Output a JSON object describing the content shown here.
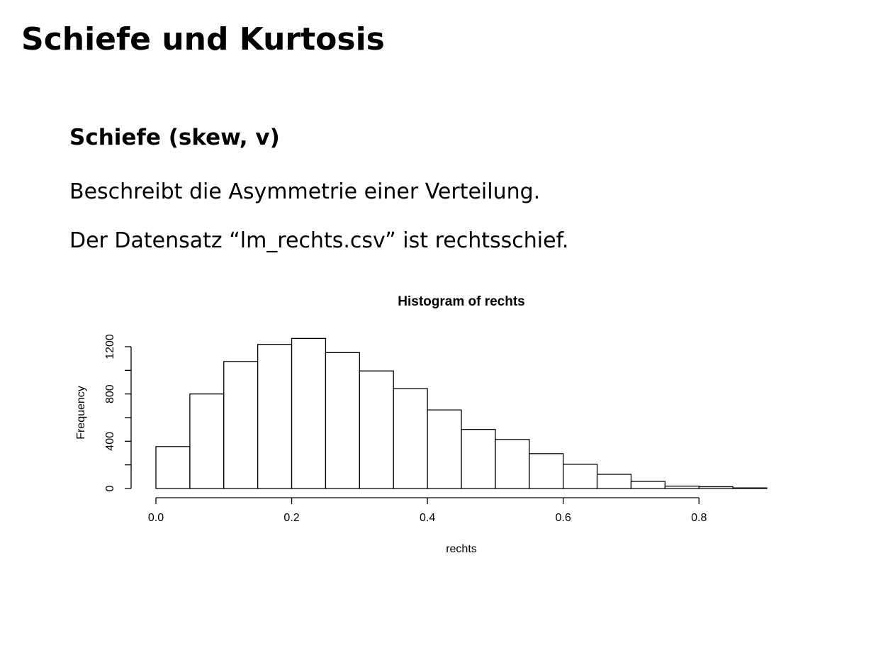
{
  "slide": {
    "title": "Schiefe und Kurtosis",
    "section_heading": "Schiefe (skew, v)",
    "line1": "Beschreibt die Asymmetrie einer Verteilung.",
    "line2": "Der Datensatz “lm_rechts.csv” ist rechtsschief."
  },
  "colors": {
    "text": "#000000",
    "background": "#ffffff",
    "bar_fill": "#ffffff",
    "bar_stroke": "#000000"
  },
  "chart_data": {
    "type": "bar",
    "title": "Histogram of rechts",
    "xlabel": "rechts",
    "ylabel": "Frequency",
    "bin_width": 0.05,
    "bins": [
      {
        "start": 0.0,
        "end": 0.05,
        "value": 355
      },
      {
        "start": 0.05,
        "end": 0.1,
        "value": 800
      },
      {
        "start": 0.1,
        "end": 0.15,
        "value": 1075
      },
      {
        "start": 0.15,
        "end": 0.2,
        "value": 1220
      },
      {
        "start": 0.2,
        "end": 0.25,
        "value": 1270
      },
      {
        "start": 0.25,
        "end": 0.3,
        "value": 1150
      },
      {
        "start": 0.3,
        "end": 0.35,
        "value": 995
      },
      {
        "start": 0.35,
        "end": 0.4,
        "value": 845
      },
      {
        "start": 0.4,
        "end": 0.45,
        "value": 665
      },
      {
        "start": 0.45,
        "end": 0.5,
        "value": 500
      },
      {
        "start": 0.5,
        "end": 0.55,
        "value": 415
      },
      {
        "start": 0.55,
        "end": 0.6,
        "value": 295
      },
      {
        "start": 0.6,
        "end": 0.65,
        "value": 205
      },
      {
        "start": 0.65,
        "end": 0.7,
        "value": 120
      },
      {
        "start": 0.7,
        "end": 0.75,
        "value": 60
      },
      {
        "start": 0.75,
        "end": 0.8,
        "value": 20
      },
      {
        "start": 0.8,
        "end": 0.85,
        "value": 15
      },
      {
        "start": 0.85,
        "end": 0.9,
        "value": 5
      }
    ],
    "xlim": [
      0,
      0.9
    ],
    "ylim": [
      0,
      1300
    ],
    "x_ticks": [
      0.0,
      0.2,
      0.4,
      0.6,
      0.8
    ],
    "x_tick_labels": [
      "0.0",
      "0.2",
      "0.4",
      "0.6",
      "0.8"
    ],
    "x_minor_ticks": [],
    "y_ticks": [
      0,
      200,
      400,
      600,
      800,
      1000,
      1200
    ],
    "y_tick_labels": [
      "0",
      "",
      "400",
      "",
      "800",
      "",
      "1200"
    ],
    "grid": false,
    "legend": "none"
  }
}
